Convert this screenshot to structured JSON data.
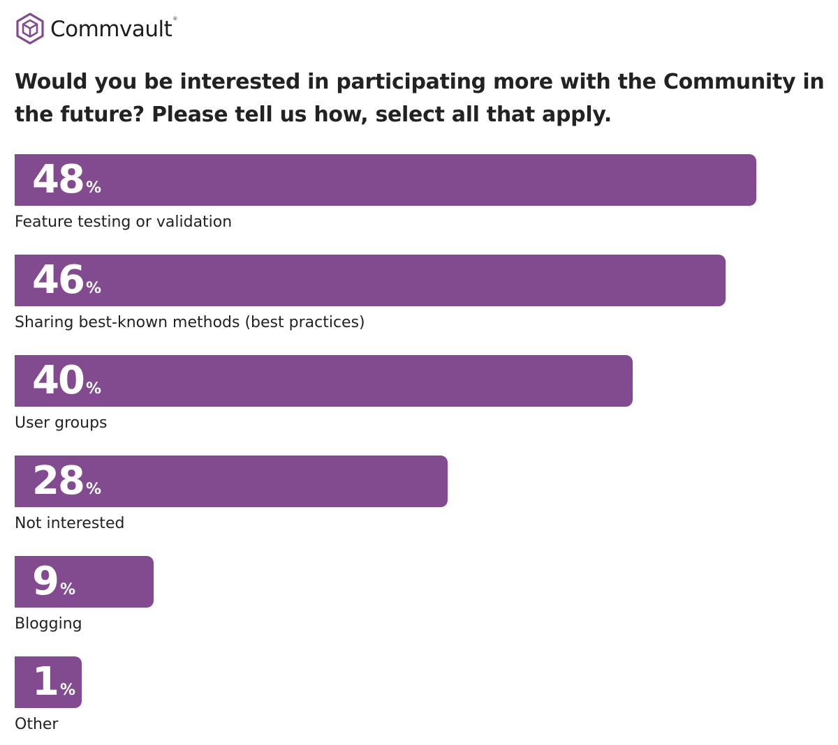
{
  "brand": {
    "name": "Commvault",
    "registered_mark": "®",
    "logo_icon": "commvault-cube-icon",
    "accent_color": "#824a8f"
  },
  "chart_data": {
    "type": "bar",
    "orientation": "horizontal",
    "title": "Would you be interested in participating more with the Community in the future? Please tell us how, select all that apply.",
    "categories": [
      "Feature testing or validation",
      "Sharing best-known methods (best practices)",
      "User groups",
      "Not interested",
      "Blogging",
      "Other"
    ],
    "values": [
      48,
      46,
      40,
      28,
      9,
      1
    ],
    "unit": "%",
    "xlim": [
      0,
      50
    ],
    "grid": false,
    "legend": "none",
    "bar_color": "#824a8f"
  }
}
